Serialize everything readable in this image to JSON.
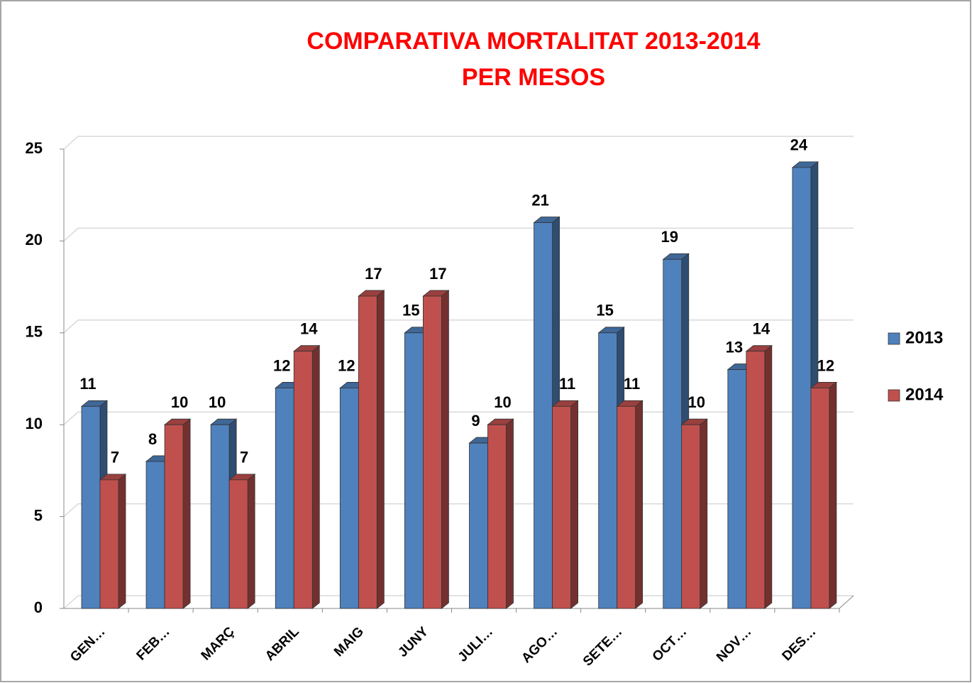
{
  "chart_data": {
    "type": "bar",
    "title": [
      "COMPARATIVA MORTALITAT 2013-2014",
      "PER MESOS"
    ],
    "categories": [
      "GEN…",
      "FEB…",
      "MARÇ",
      "ABRIL",
      "MAIG",
      "JUNY",
      "JULI…",
      "AGO…",
      "SETE…",
      "OCT…",
      "NOV…",
      "DES…"
    ],
    "series": [
      {
        "name": "2013",
        "color": "#4f81bd",
        "values": [
          11,
          8,
          10,
          12,
          12,
          15,
          9,
          21,
          15,
          19,
          13,
          24
        ]
      },
      {
        "name": "2014",
        "color": "#c0504d",
        "values": [
          7,
          10,
          7,
          14,
          17,
          17,
          10,
          11,
          11,
          10,
          14,
          12
        ]
      }
    ],
    "ylim": [
      0,
      25
    ],
    "yticks": [
      0,
      5,
      10,
      15,
      20,
      25
    ],
    "grid": true,
    "legend": "right"
  }
}
